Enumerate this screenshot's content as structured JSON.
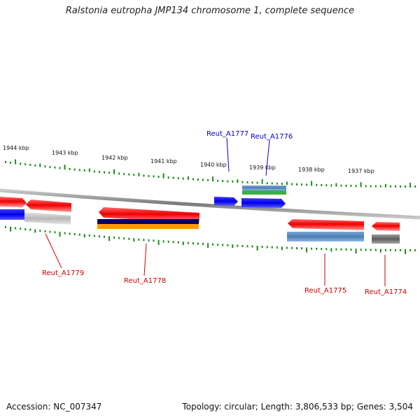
{
  "title": "Ralstonia eutropha JMP134 chromosome 1, complete sequence",
  "footer": {
    "accession": "Accession: NC_007347",
    "summary": "Topology: circular; Length: 3,806,533 bp; Genes: 3,504"
  },
  "scale": {
    "tick_labels": [
      "1944 kbp",
      "1943 kbp",
      "1942 kbp",
      "1941 kbp",
      "1940 kbp",
      "1939 kbp",
      "1938 kbp",
      "1937 kbp"
    ]
  },
  "genes": {
    "labeled_forward": [
      "Reut_A1777",
      "Reut_A1776"
    ],
    "labeled_reverse": [
      "Reut_A1779",
      "Reut_A1778",
      "Reut_A1775",
      "Reut_A1774"
    ]
  },
  "colors": {
    "forward_label": "#0000cc",
    "reverse_label": "#cc0000",
    "gene_red": "#e00000",
    "gene_blue": "#0000ee",
    "gene_steel": "#4b7fb5",
    "gene_green": "#3cb043",
    "gene_navy": "#000066",
    "gene_orange": "#ff9a00",
    "gene_gray": "#6e6e6e",
    "gene_lightgray": "#c0c0c0",
    "tick_green": "#1a8a1a",
    "backbone": "#888888"
  }
}
